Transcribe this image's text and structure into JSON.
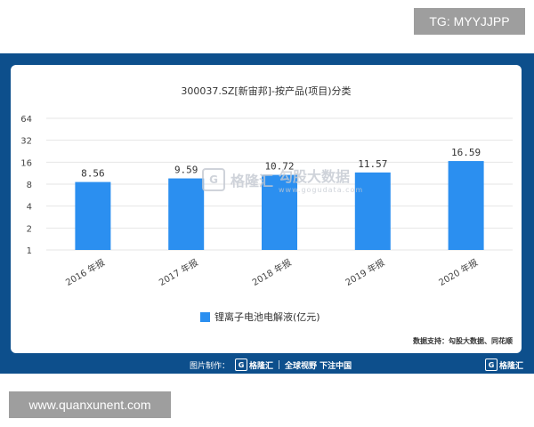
{
  "tags": {
    "top_right": "TG: MYYJJPP",
    "bottom_left": "www.quanxunent.com"
  },
  "watermark": {
    "logo_mark": "G",
    "brand": "格隆汇",
    "product": "勾股大数据",
    "url": "www.gogudata.com"
  },
  "footer": {
    "credit_label": "图片制作：",
    "brand": "格隆汇",
    "slogan": "全球视野 下注中国",
    "right_brand": "格隆汇",
    "logo_mark": "G"
  },
  "colors": {
    "frame": "#0d4f8c",
    "bar": "#2b8ff0",
    "grid": "#e6e6e6"
  },
  "chart_data": {
    "type": "bar",
    "title": "300037.SZ[新宙邦]-按产品(项目)分类",
    "categories": [
      "2016 年报",
      "2017 年报",
      "2018 年报",
      "2019 年报",
      "2020 年报"
    ],
    "series": [
      {
        "name": "锂离子电池电解液(亿元)",
        "values": [
          8.56,
          9.59,
          10.72,
          11.57,
          16.59
        ]
      }
    ],
    "data_labels": [
      "8.56",
      "9.59",
      "10.72",
      "11.57",
      "16.59"
    ],
    "y_scale": "log2",
    "y_ticks": [
      "1",
      "2",
      "4",
      "8",
      "16",
      "32",
      "64"
    ],
    "ylim": [
      1,
      64
    ],
    "grid": true,
    "legend_position": "bottom-center",
    "source_note": "数据支持：勾股大数据、同花顺"
  }
}
